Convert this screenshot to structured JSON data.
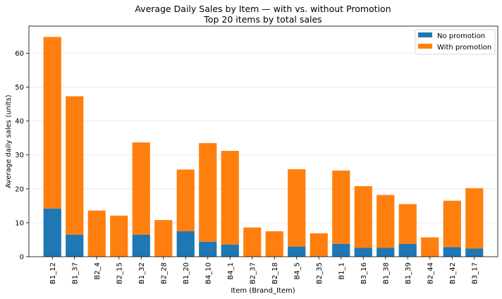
{
  "chart_data": {
    "type": "bar",
    "stacked": true,
    "title": "Average Daily Sales by Item — with vs. without Promotion",
    "subtitle": "Top 20 items by total sales",
    "xlabel": "Item (Brand_Item)",
    "ylabel": "Average daily sales (units)",
    "ylim": [
      0,
      68
    ],
    "yticks": [
      0,
      10,
      20,
      30,
      40,
      50,
      60
    ],
    "grid": "y",
    "legend_position": "top-right",
    "categories": [
      "B1_12",
      "B1_37",
      "B2_4",
      "B2_15",
      "B1_32",
      "B2_28",
      "B1_20",
      "B4_10",
      "B4_1",
      "B2_37",
      "B2_18",
      "B4_5",
      "B2_35",
      "B1_1",
      "B3_16",
      "B1_38",
      "B1_39",
      "B2_44",
      "B1_42",
      "B3_17"
    ],
    "series": [
      {
        "name": "No promotion",
        "color": "#1f77b4",
        "values": [
          14.2,
          6.5,
          0,
          0,
          6.5,
          0,
          7.5,
          4.4,
          3.6,
          0,
          0,
          3.0,
          0,
          3.8,
          2.6,
          2.6,
          3.8,
          0,
          2.8,
          2.4
        ]
      },
      {
        "name": "With promotion",
        "color": "#ff7f0e",
        "values": [
          50.6,
          40.8,
          13.6,
          12.1,
          27.2,
          10.8,
          18.2,
          29.1,
          27.6,
          8.6,
          7.5,
          22.8,
          6.9,
          21.6,
          18.2,
          15.6,
          11.7,
          5.7,
          13.7,
          17.8
        ]
      }
    ]
  }
}
